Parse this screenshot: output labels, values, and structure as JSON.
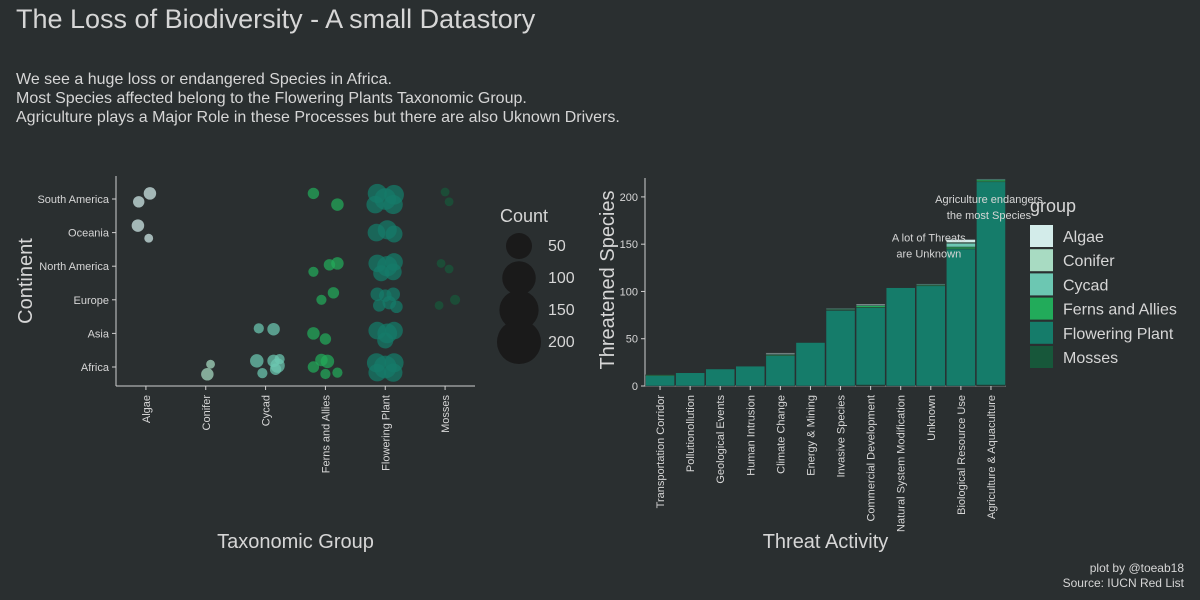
{
  "title": "The Loss of Biodiversity - A small Datastory",
  "subtitle_lines": [
    "We see a huge loss or endangered Species in Africa.",
    "Most Species affected belong to the Flowering Plants Taxonomic Group.",
    "Agriculture plays a Major Role in these Processes but there are also Uknown Drivers."
  ],
  "caption_lines": [
    "plot by @toeab18",
    "Source: IUCN Red List"
  ],
  "colors": {
    "background": "#2a2f30",
    "text": "#d6d6d6",
    "axis": "#cfcfcf",
    "Algae": "#d3ecea",
    "Conifer": "#a8dbc2",
    "Cycad": "#6cc7b2",
    "Ferns and Allies": "#22ab5a",
    "Flowering Plant": "#157c6a",
    "Mosses": "#17573a"
  },
  "chart_data": [
    {
      "type": "scatter",
      "xlabel": "Taxonomic Group",
      "ylabel": "Continent",
      "x_categories": [
        "Algae",
        "Conifer",
        "Cycad",
        "Ferns and Allies",
        "Flowering Plant",
        "Mosses"
      ],
      "y_categories": [
        "Africa",
        "Asia",
        "Europe",
        "North America",
        "Oceania",
        "South America"
      ],
      "size_legend": {
        "title": "Count",
        "values": [
          50,
          100,
          150,
          200
        ]
      },
      "points": [
        {
          "x": "Algae",
          "y": "South America",
          "dx": -0.18,
          "dy": -0.1,
          "count": 5
        },
        {
          "x": "Algae",
          "y": "South America",
          "dx": 0.1,
          "dy": 0.2,
          "count": 6
        },
        {
          "x": "Algae",
          "y": "Oceania",
          "dx": -0.2,
          "dy": 0.25,
          "count": 6
        },
        {
          "x": "Algae",
          "y": "Oceania",
          "dx": 0.07,
          "dy": -0.2,
          "count": 3
        },
        {
          "x": "Conifer",
          "y": "Africa",
          "dx": 0.12,
          "dy": 0.1,
          "count": 3
        },
        {
          "x": "Conifer",
          "y": "Africa",
          "dx": 0.04,
          "dy": -0.26,
          "count": 6
        },
        {
          "x": "Cycad",
          "y": "Asia",
          "dx": -0.17,
          "dy": 0.18,
          "count": 4
        },
        {
          "x": "Cycad",
          "y": "Asia",
          "dx": 0.2,
          "dy": 0.15,
          "count": 6
        },
        {
          "x": "Cycad",
          "y": "Africa",
          "dx": -0.22,
          "dy": 0.22,
          "count": 7
        },
        {
          "x": "Cycad",
          "y": "Africa",
          "dx": -0.08,
          "dy": -0.22,
          "count": 4
        },
        {
          "x": "Cycad",
          "y": "Africa",
          "dx": 0.2,
          "dy": 0.22,
          "count": 6
        },
        {
          "x": "Cycad",
          "y": "Africa",
          "dx": 0.3,
          "dy": 0.05,
          "count": 8
        },
        {
          "x": "Cycad",
          "y": "Africa",
          "dx": 0.35,
          "dy": 0.28,
          "count": 4
        },
        {
          "x": "Cycad",
          "y": "Africa",
          "dx": 0.25,
          "dy": -0.08,
          "count": 5
        },
        {
          "x": "Ferns and Allies",
          "y": "South America",
          "dx": -0.3,
          "dy": 0.2,
          "count": 5
        },
        {
          "x": "Ferns and Allies",
          "y": "South America",
          "dx": 0.3,
          "dy": -0.2,
          "count": 6
        },
        {
          "x": "Ferns and Allies",
          "y": "North America",
          "dx": -0.3,
          "dy": -0.2,
          "count": 4
        },
        {
          "x": "Ferns and Allies",
          "y": "North America",
          "dx": 0.1,
          "dy": 0.05,
          "count": 5
        },
        {
          "x": "Ferns and Allies",
          "y": "North America",
          "dx": 0.3,
          "dy": 0.1,
          "count": 6
        },
        {
          "x": "Ferns and Allies",
          "y": "Europe",
          "dx": -0.1,
          "dy": 0.0,
          "count": 4
        },
        {
          "x": "Ferns and Allies",
          "y": "Europe",
          "dx": 0.2,
          "dy": 0.25,
          "count": 5
        },
        {
          "x": "Ferns and Allies",
          "y": "Asia",
          "dx": -0.3,
          "dy": 0.0,
          "count": 6
        },
        {
          "x": "Ferns and Allies",
          "y": "Asia",
          "dx": 0.0,
          "dy": -0.2,
          "count": 5
        },
        {
          "x": "Ferns and Allies",
          "y": "Africa",
          "dx": -0.1,
          "dy": 0.25,
          "count": 6
        },
        {
          "x": "Ferns and Allies",
          "y": "Africa",
          "dx": 0.05,
          "dy": 0.2,
          "count": 7
        },
        {
          "x": "Ferns and Allies",
          "y": "Africa",
          "dx": -0.3,
          "dy": 0.0,
          "count": 5
        },
        {
          "x": "Ferns and Allies",
          "y": "Africa",
          "dx": 0.0,
          "dy": -0.25,
          "count": 4
        },
        {
          "x": "Ferns and Allies",
          "y": "Africa",
          "dx": 0.3,
          "dy": -0.2,
          "count": 4
        },
        {
          "x": "Flowering Plant",
          "y": "South America",
          "dx": -0.2,
          "dy": 0.2,
          "count": 14
        },
        {
          "x": "Flowering Plant",
          "y": "South America",
          "dx": 0.0,
          "dy": 0.0,
          "count": 18
        },
        {
          "x": "Flowering Plant",
          "y": "South America",
          "dx": 0.22,
          "dy": 0.15,
          "count": 15
        },
        {
          "x": "Flowering Plant",
          "y": "South America",
          "dx": -0.25,
          "dy": -0.2,
          "count": 12
        },
        {
          "x": "Flowering Plant",
          "y": "South America",
          "dx": 0.2,
          "dy": -0.2,
          "count": 14
        },
        {
          "x": "Flowering Plant",
          "y": "Oceania",
          "dx": -0.22,
          "dy": 0.0,
          "count": 12
        },
        {
          "x": "Flowering Plant",
          "y": "Oceania",
          "dx": 0.05,
          "dy": 0.1,
          "count": 14
        },
        {
          "x": "Flowering Plant",
          "y": "Oceania",
          "dx": 0.22,
          "dy": -0.05,
          "count": 11
        },
        {
          "x": "Flowering Plant",
          "y": "North America",
          "dx": -0.2,
          "dy": 0.1,
          "count": 12
        },
        {
          "x": "Flowering Plant",
          "y": "North America",
          "dx": 0.05,
          "dy": 0.0,
          "count": 16
        },
        {
          "x": "Flowering Plant",
          "y": "North America",
          "dx": 0.22,
          "dy": 0.15,
          "count": 12
        },
        {
          "x": "Flowering Plant",
          "y": "North America",
          "dx": -0.1,
          "dy": -0.25,
          "count": 10
        },
        {
          "x": "Flowering Plant",
          "y": "North America",
          "dx": 0.2,
          "dy": -0.2,
          "count": 11
        },
        {
          "x": "Flowering Plant",
          "y": "Europe",
          "dx": -0.2,
          "dy": 0.2,
          "count": 7
        },
        {
          "x": "Flowering Plant",
          "y": "Europe",
          "dx": 0.0,
          "dy": 0.15,
          "count": 6
        },
        {
          "x": "Flowering Plant",
          "y": "Europe",
          "dx": 0.2,
          "dy": 0.2,
          "count": 7
        },
        {
          "x": "Flowering Plant",
          "y": "Europe",
          "dx": -0.15,
          "dy": -0.2,
          "count": 6
        },
        {
          "x": "Flowering Plant",
          "y": "Europe",
          "dx": 0.1,
          "dy": -0.1,
          "count": 7
        },
        {
          "x": "Flowering Plant",
          "y": "Europe",
          "dx": 0.28,
          "dy": -0.25,
          "count": 6
        },
        {
          "x": "Flowering Plant",
          "y": "Asia",
          "dx": -0.2,
          "dy": 0.1,
          "count": 12
        },
        {
          "x": "Flowering Plant",
          "y": "Asia",
          "dx": 0.05,
          "dy": 0.0,
          "count": 15
        },
        {
          "x": "Flowering Plant",
          "y": "Asia",
          "dx": 0.22,
          "dy": 0.1,
          "count": 12
        },
        {
          "x": "Flowering Plant",
          "y": "Asia",
          "dx": 0.0,
          "dy": -0.25,
          "count": 10
        },
        {
          "x": "Flowering Plant",
          "y": "Africa",
          "dx": -0.22,
          "dy": 0.15,
          "count": 14
        },
        {
          "x": "Flowering Plant",
          "y": "Africa",
          "dx": 0.0,
          "dy": 0.0,
          "count": 20
        },
        {
          "x": "Flowering Plant",
          "y": "Africa",
          "dx": 0.22,
          "dy": 0.15,
          "count": 14
        },
        {
          "x": "Flowering Plant",
          "y": "Africa",
          "dx": -0.2,
          "dy": -0.2,
          "count": 12
        },
        {
          "x": "Flowering Plant",
          "y": "Africa",
          "dx": 0.2,
          "dy": -0.2,
          "count": 13
        },
        {
          "x": "Mosses",
          "y": "South America",
          "dx": 0.0,
          "dy": 0.25,
          "count": 3
        },
        {
          "x": "Mosses",
          "y": "South America",
          "dx": 0.1,
          "dy": -0.1,
          "count": 3
        },
        {
          "x": "Mosses",
          "y": "North America",
          "dx": -0.1,
          "dy": 0.1,
          "count": 3
        },
        {
          "x": "Mosses",
          "y": "North America",
          "dx": 0.1,
          "dy": -0.1,
          "count": 3
        },
        {
          "x": "Mosses",
          "y": "Europe",
          "dx": -0.15,
          "dy": -0.2,
          "count": 3
        },
        {
          "x": "Mosses",
          "y": "Europe",
          "dx": 0.25,
          "dy": 0.0,
          "count": 4
        }
      ]
    },
    {
      "type": "bar",
      "stacked": true,
      "xlabel": "Threat Activity",
      "ylabel": "Threatened Species",
      "ylim": [
        0,
        220
      ],
      "yticks": [
        0,
        50,
        100,
        150,
        200
      ],
      "categories": [
        "Transportation Corridor",
        "Pollutionollution",
        "Geological Events",
        "Human Intrusion",
        "Climate Change",
        "Energy & Mining",
        "Invasive Species",
        "Commercial Development",
        "Natural System Modification",
        "Unknown",
        "Biological Resource Use",
        "Agriculture & Aquaculture"
      ],
      "legend_title": "group",
      "series": [
        {
          "name": "Mosses",
          "values": [
            0,
            0,
            0,
            0,
            0,
            0,
            0,
            1,
            0,
            0,
            0,
            1
          ]
        },
        {
          "name": "Flowering Plant",
          "values": [
            11,
            14,
            18,
            21,
            32,
            46,
            80,
            82,
            104,
            106,
            145,
            215
          ]
        },
        {
          "name": "Ferns and Allies",
          "values": [
            1,
            0,
            0,
            0,
            1,
            0,
            1,
            2,
            0,
            1,
            2,
            2
          ]
        },
        {
          "name": "Cycad",
          "values": [
            0,
            0,
            0,
            0,
            1,
            0,
            1,
            1,
            0,
            1,
            4,
            1
          ]
        },
        {
          "name": "Conifer",
          "values": [
            0,
            0,
            0,
            0,
            0,
            0,
            0,
            0,
            0,
            0,
            1,
            0
          ]
        },
        {
          "name": "Algae",
          "values": [
            0,
            0,
            0,
            0,
            1,
            0,
            0,
            1,
            0,
            0,
            3,
            0
          ]
        }
      ],
      "annotations": [
        {
          "text": "Agriculture endangers",
          "x": "Agriculture & Aquaculture",
          "y": 198
        },
        {
          "text": "the most Species",
          "x": "Agriculture & Aquaculture",
          "y": 181
        },
        {
          "text": "A lot of Threats",
          "x": "Unknown",
          "y": 157
        },
        {
          "text": "are Unknown",
          "x": "Unknown",
          "y": 140
        }
      ]
    }
  ]
}
